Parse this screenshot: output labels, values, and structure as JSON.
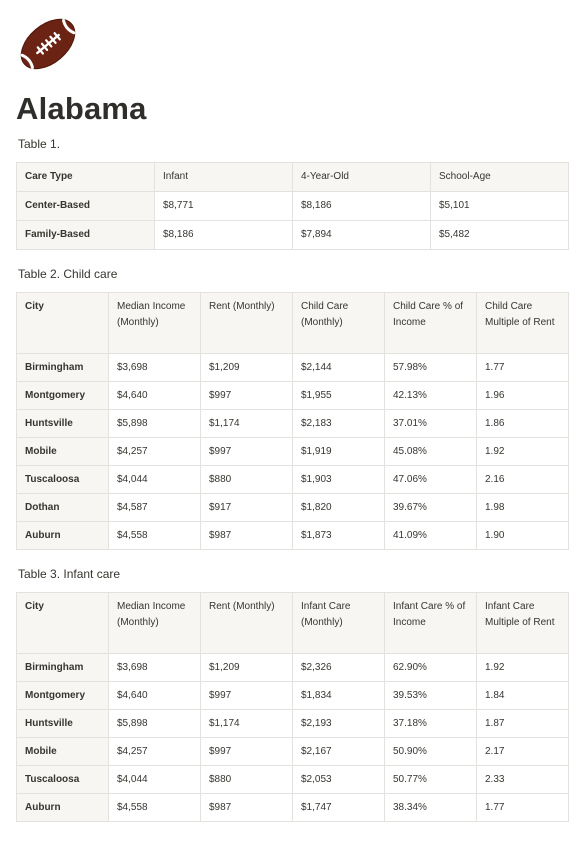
{
  "page": {
    "icon": "american-football-icon",
    "title": "Alabama"
  },
  "table1": {
    "caption": "Table 1.",
    "headers": [
      "Care Type",
      "Infant",
      "4-Year-Old",
      "School-Age"
    ],
    "rows": [
      [
        "Center-Based",
        "$8,771",
        "$8,186",
        "$5,101"
      ],
      [
        "Family-Based",
        "$8,186",
        "$7,894",
        "$5,482"
      ]
    ]
  },
  "table2": {
    "caption": "Table 2. Child care",
    "headers": [
      "City",
      "Median Income (Monthly)",
      "Rent (Monthly)",
      "Child Care (Monthly)",
      "Child Care % of Income",
      "Child Care Multiple of Rent"
    ],
    "rows": [
      [
        "Birmingham",
        "$3,698",
        "$1,209",
        "$2,144",
        "57.98%",
        "1.77"
      ],
      [
        "Montgomery",
        "$4,640",
        "$997",
        "$1,955",
        "42.13%",
        "1.96"
      ],
      [
        "Huntsville",
        "$5,898",
        "$1,174",
        "$2,183",
        "37.01%",
        "1.86"
      ],
      [
        "Mobile",
        "$4,257",
        "$997",
        "$1,919",
        "45.08%",
        "1.92"
      ],
      [
        "Tuscaloosa",
        "$4,044",
        "$880",
        "$1,903",
        "47.06%",
        "2.16"
      ],
      [
        "Dothan",
        "$4,587",
        "$917",
        "$1,820",
        "39.67%",
        "1.98"
      ],
      [
        "Auburn",
        "$4,558",
        "$987",
        "$1,873",
        "41.09%",
        "1.90"
      ]
    ]
  },
  "table3": {
    "caption": "Table 3. Infant care",
    "headers": [
      "City",
      "Median Income (Monthly)",
      "Rent (Monthly)",
      "Infant Care (Monthly)",
      "Infant Care % of Income",
      "Infant Care Multiple of Rent"
    ],
    "rows": [
      [
        "Birmingham",
        "$3,698",
        "$1,209",
        "$2,326",
        "62.90%",
        "1.92"
      ],
      [
        "Montgomery",
        "$4,640",
        "$997",
        "$1,834",
        "39.53%",
        "1.84"
      ],
      [
        "Huntsville",
        "$5,898",
        "$1,174",
        "$2,193",
        "37.18%",
        "1.87"
      ],
      [
        "Mobile",
        "$4,257",
        "$997",
        "$2,167",
        "50.90%",
        "2.17"
      ],
      [
        "Tuscaloosa",
        "$4,044",
        "$880",
        "$2,053",
        "50.77%",
        "2.33"
      ],
      [
        "Auburn",
        "$4,558",
        "$987",
        "$1,747",
        "38.34%",
        "1.77"
      ]
    ]
  }
}
